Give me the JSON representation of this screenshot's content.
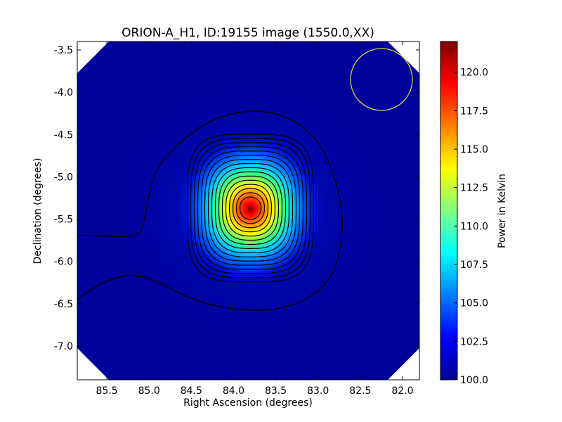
{
  "chart_data": {
    "type": "heatmap",
    "title": "ORION-A_H1, ID:19155 image (1550.0,XX)",
    "xlabel": "Right Ascension (degrees)",
    "ylabel": "Declination (degrees)",
    "xlim": [
      85.85,
      81.8
    ],
    "ylim": [
      -7.4,
      -3.4
    ],
    "x_reversed": true,
    "x_ticks": [
      "85.5",
      "85.0",
      "84.5",
      "84.0",
      "83.5",
      "83.0",
      "82.5",
      "82.0"
    ],
    "x_tick_values": [
      85.5,
      85.0,
      84.5,
      84.0,
      83.5,
      83.0,
      82.5,
      82.0
    ],
    "y_ticks": [
      "-3.5",
      "-4.0",
      "-4.5",
      "-5.0",
      "-5.5",
      "-6.0",
      "-6.5",
      "-7.0"
    ],
    "y_tick_values": [
      -3.5,
      -4.0,
      -4.5,
      -5.0,
      -5.5,
      -6.0,
      -6.5,
      -7.0
    ],
    "colorbar": {
      "label": "Power in Kelvin",
      "range": [
        100.0,
        122.0
      ],
      "ticks": [
        "100.0",
        "102.5",
        "105.0",
        "107.5",
        "110.0",
        "112.5",
        "115.0",
        "117.5",
        "120.0"
      ],
      "tick_values": [
        100.0,
        102.5,
        105.0,
        107.5,
        110.0,
        112.5,
        115.0,
        117.5,
        120.0
      ],
      "colormap": "jet"
    },
    "source_peak": {
      "ra": 83.8,
      "dec": -5.37,
      "value": 122.0
    },
    "beam_circle": {
      "ra": 82.25,
      "dec": -3.82,
      "radius_deg": 0.36,
      "color": "#d4d440"
    },
    "contour_count": 17,
    "colors": {
      "background": "#00008f",
      "contour": "#000000"
    }
  }
}
